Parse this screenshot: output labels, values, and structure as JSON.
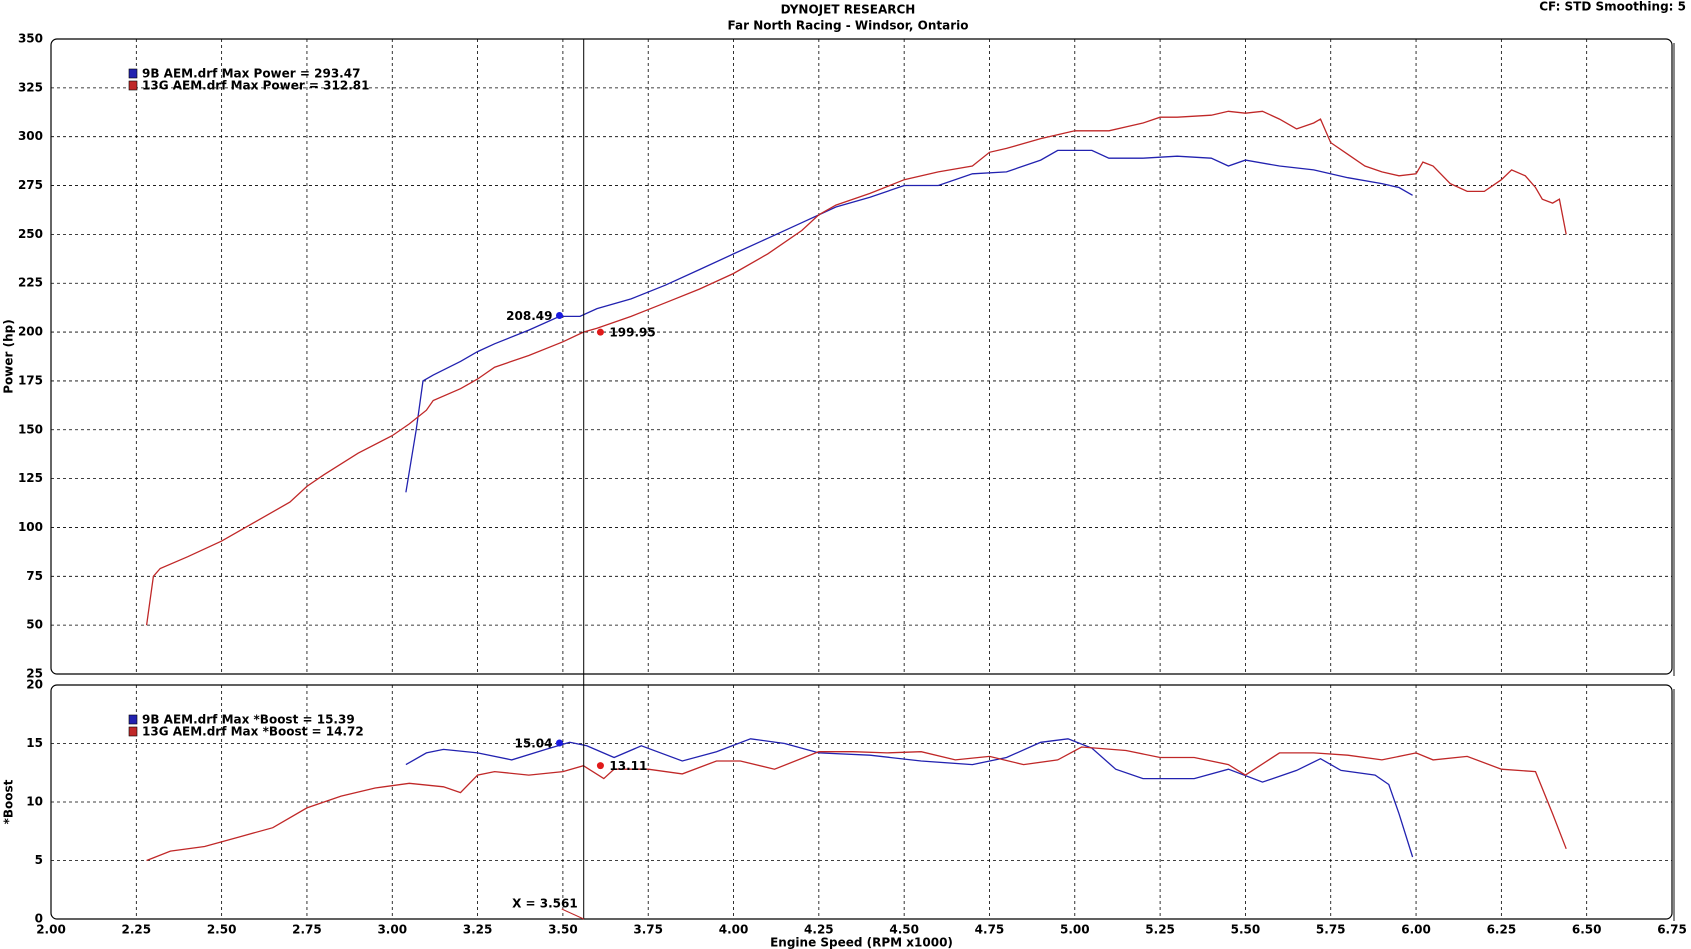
{
  "header_note": "CF: STD  Smoothing: 5",
  "chart_data": [
    {
      "type": "line",
      "title": "DYNOJET RESEARCH",
      "subtitle": "Far North Racing - Windsor, Ontario",
      "ylabel": "Power (hp)",
      "xlim": [
        2,
        6.75
      ],
      "ylim": [
        25,
        350
      ],
      "yticks": [
        25,
        50,
        75,
        100,
        125,
        150,
        175,
        200,
        225,
        250,
        275,
        300,
        325,
        350
      ],
      "grid": true,
      "series": [
        {
          "name": "9B AEM.drf Max Power = 293.47",
          "color": "#2222b0",
          "x": [
            3.04,
            3.07,
            3.09,
            3.12,
            3.2,
            3.25,
            3.3,
            3.4,
            3.49,
            3.55,
            3.6,
            3.7,
            3.8,
            3.9,
            4.0,
            4.1,
            4.2,
            4.3,
            4.4,
            4.5,
            4.6,
            4.7,
            4.8,
            4.9,
            4.95,
            5.05,
            5.1,
            5.2,
            5.3,
            5.4,
            5.45,
            5.5,
            5.6,
            5.7,
            5.8,
            5.9,
            5.95,
            5.99
          ],
          "values": [
            118,
            150,
            175,
            178,
            185,
            190,
            194,
            201,
            208,
            208,
            212,
            217,
            224,
            232,
            240,
            248,
            256,
            264,
            269,
            275,
            275,
            281,
            282,
            288,
            293,
            293,
            289,
            289,
            290,
            289,
            285,
            288,
            285,
            283,
            279,
            276,
            274,
            270
          ]
        },
        {
          "name": "13G AEM.drf Max Power = 312.81",
          "color": "#c02828",
          "x": [
            2.28,
            2.3,
            2.32,
            2.4,
            2.5,
            2.6,
            2.7,
            2.75,
            2.8,
            2.9,
            3.0,
            3.05,
            3.1,
            3.12,
            3.2,
            3.25,
            3.3,
            3.4,
            3.5,
            3.56,
            3.6,
            3.7,
            3.8,
            3.9,
            4.0,
            4.1,
            4.2,
            4.25,
            4.3,
            4.4,
            4.5,
            4.6,
            4.7,
            4.75,
            4.8,
            4.9,
            5.0,
            5.1,
            5.2,
            5.25,
            5.3,
            5.4,
            5.45,
            5.5,
            5.55,
            5.6,
            5.65,
            5.7,
            5.72,
            5.75,
            5.8,
            5.85,
            5.9,
            5.95,
            6.0,
            6.02,
            6.05,
            6.1,
            6.15,
            6.2,
            6.25,
            6.28,
            6.32,
            6.35,
            6.37,
            6.4,
            6.42,
            6.44
          ],
          "values": [
            50,
            75,
            79,
            85,
            93,
            103,
            113,
            121,
            127,
            138,
            147,
            153,
            160,
            165,
            171,
            176,
            182,
            188,
            195,
            200,
            202,
            208,
            215,
            222,
            230,
            240,
            252,
            260,
            265,
            271,
            278,
            282,
            285,
            292,
            294,
            299,
            303,
            303,
            307,
            310,
            310,
            311,
            313,
            312,
            313,
            309,
            304,
            307,
            309,
            297,
            291,
            285,
            282,
            280,
            281,
            287,
            285,
            276,
            272,
            272,
            278,
            283,
            280,
            274,
            268,
            266,
            268,
            250
          ]
        }
      ],
      "markers": [
        {
          "x": 3.49,
          "y": 208.49,
          "color": "#1a1ae0"
        },
        {
          "x": 3.61,
          "y": 199.95,
          "color": "#e01a1a"
        }
      ]
    },
    {
      "type": "line",
      "ylabel": "*Boost",
      "xlabel": "Engine Speed (RPM x1000)",
      "xlim": [
        2,
        6.75
      ],
      "ylim": [
        0,
        20
      ],
      "yticks": [
        0,
        5,
        10,
        15,
        20
      ],
      "grid": true,
      "xticks": [
        {
          "value": 2,
          "label": "2.00"
        },
        {
          "value": 2.25,
          "label": "2.25"
        },
        {
          "value": 2.5,
          "label": "2.50"
        },
        {
          "value": 2.75,
          "label": "2.75"
        },
        {
          "value": 3,
          "label": "3.00"
        },
        {
          "value": 3.25,
          "label": "3.25"
        },
        {
          "value": 3.5,
          "label": "3.50"
        },
        {
          "value": 3.75,
          "label": "3.75"
        },
        {
          "value": 4,
          "label": "4.00"
        },
        {
          "value": 4.25,
          "label": "4.25"
        },
        {
          "value": 4.5,
          "label": "4.50"
        },
        {
          "value": 4.75,
          "label": "4.75"
        },
        {
          "value": 5,
          "label": "5.00"
        },
        {
          "value": 5.25,
          "label": "5.25"
        },
        {
          "value": 5.5,
          "label": "5.50"
        },
        {
          "value": 5.75,
          "label": "5.75"
        },
        {
          "value": 6,
          "label": "6.00"
        },
        {
          "value": 6.25,
          "label": "6.25"
        },
        {
          "value": 6.5,
          "label": "6.50"
        },
        {
          "value": 6.75,
          "label": "6.75"
        }
      ],
      "series": [
        {
          "name": "9B AEM.drf Max *Boost = 15.39",
          "color": "#2222b0",
          "x": [
            3.04,
            3.1,
            3.15,
            3.25,
            3.35,
            3.45,
            3.52,
            3.57,
            3.65,
            3.73,
            3.85,
            3.95,
            4.05,
            4.15,
            4.25,
            4.4,
            4.55,
            4.7,
            4.8,
            4.9,
            4.98,
            5.05,
            5.12,
            5.2,
            5.35,
            5.45,
            5.55,
            5.65,
            5.72,
            5.78,
            5.88,
            5.92,
            5.95,
            5.99
          ],
          "values": [
            13.2,
            14.2,
            14.5,
            14.2,
            13.6,
            14.5,
            15.1,
            14.8,
            13.8,
            14.8,
            13.5,
            14.3,
            15.4,
            15.0,
            14.2,
            14.0,
            13.5,
            13.2,
            13.8,
            15.1,
            15.4,
            14.6,
            12.8,
            12.0,
            12.0,
            12.8,
            11.7,
            12.7,
            13.7,
            12.7,
            12.3,
            11.5,
            9,
            5.3
          ]
        },
        {
          "name": "13G AEM.drf Max *Boost = 14.72",
          "color": "#c02828",
          "x": [
            2.28,
            2.35,
            2.45,
            2.55,
            2.65,
            2.75,
            2.85,
            2.95,
            3.05,
            3.15,
            3.2,
            3.25,
            3.3,
            3.4,
            3.5,
            3.56,
            3.62,
            3.65,
            3.75,
            3.85,
            3.95,
            4.02,
            4.12,
            4.25,
            4.35,
            4.45,
            4.55,
            4.65,
            4.75,
            4.85,
            4.95,
            5.02,
            5.15,
            5.25,
            5.35,
            5.45,
            5.5,
            5.6,
            5.7,
            5.8,
            5.9,
            6.0,
            6.05,
            6.15,
            6.25,
            6.35,
            6.4,
            6.44
          ],
          "values": [
            5,
            5.8,
            6.2,
            7,
            7.8,
            9.5,
            10.5,
            11.2,
            11.6,
            11.3,
            10.8,
            12.3,
            12.6,
            12.3,
            12.6,
            13.1,
            12.0,
            12.8,
            12.8,
            12.4,
            13.5,
            13.5,
            12.8,
            14.3,
            14.3,
            14.2,
            14.3,
            13.6,
            13.9,
            13.2,
            13.6,
            14.7,
            14.4,
            13.8,
            13.8,
            13.2,
            12.3,
            14.2,
            14.2,
            14.0,
            13.6,
            14.2,
            13.6,
            13.9,
            12.8,
            12.6,
            9,
            6
          ]
        }
      ],
      "markers": [
        {
          "x": 3.49,
          "y": 15.04,
          "color": "#1a1ae0"
        },
        {
          "x": 3.61,
          "y": 13.11,
          "color": "#e01a1a"
        }
      ],
      "cursor_x": 3.561,
      "cursor_label": "X = 3.561"
    }
  ]
}
